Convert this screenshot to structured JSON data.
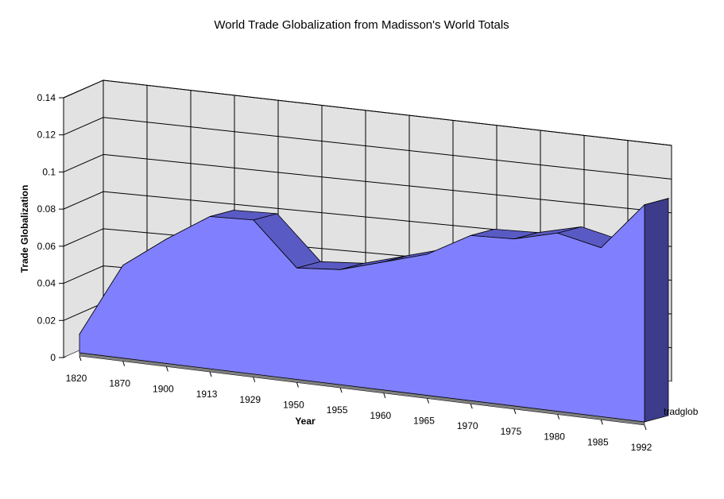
{
  "chart_data": {
    "type": "area",
    "title": "World Trade Globalization from Madisson's World Totals",
    "xlabel": "Year",
    "ylabel": "Trade Globalization",
    "series_axis_label": "tradglob",
    "categories": [
      "1820",
      "1870",
      "1900",
      "1913",
      "1929",
      "1950",
      "1955",
      "1960",
      "1965",
      "1970",
      "1975",
      "1980",
      "1985",
      "1992"
    ],
    "series": [
      {
        "name": "tradglob",
        "values": [
          0.01,
          0.05,
          0.067,
          0.082,
          0.083,
          0.06,
          0.062,
          0.069,
          0.076,
          0.089,
          0.09,
          0.096,
          0.091,
          0.117
        ]
      }
    ],
    "y_ticks": [
      "0",
      "0.02",
      "0.04",
      "0.06",
      "0.08",
      "0.1",
      "0.12",
      "0.14"
    ],
    "ylim": [
      0,
      0.14
    ],
    "grid": true,
    "legend": "none",
    "colors": {
      "front": "#8080ff",
      "top": "#5a5ac4",
      "side": "#3c3c8a",
      "wall": "#e2e2e2",
      "floor": "#808080"
    }
  }
}
